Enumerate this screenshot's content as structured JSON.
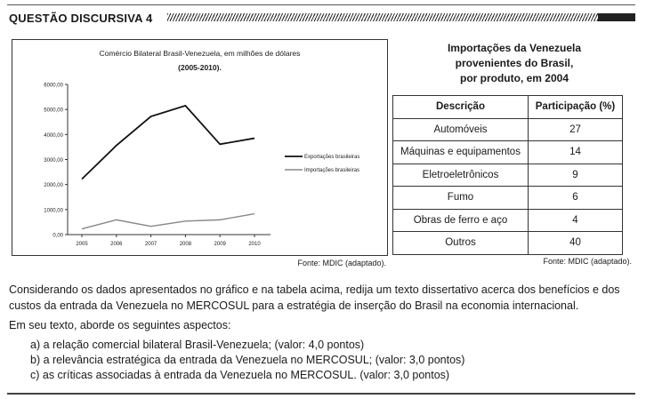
{
  "header": {
    "title": "QUESTÃO DISCURSIVA 4"
  },
  "chart": {
    "title_line1": "Comércio Bilateral Brasil-Venezuela, em milhões de dólares",
    "title_line2": "(2005-2010).",
    "source": "Fonte: MDIC (adaptado)."
  },
  "chart_data": {
    "type": "line",
    "title": "Comércio Bilateral Brasil-Venezuela, em milhões de dólares (2005-2010).",
    "x": [
      "2005",
      "2006",
      "2007",
      "2008",
      "2009",
      "2010"
    ],
    "ylim": [
      0,
      6000
    ],
    "y_ticks": [
      "0,00",
      "1000,00",
      "2000,00",
      "3000,00",
      "4000,00",
      "5000,00",
      "6000,00"
    ],
    "legend_position": "right",
    "grid": false,
    "series": [
      {
        "name": "Exportações brasileiras",
        "values": [
          2220,
          3560,
          4720,
          5150,
          3610,
          3850
        ],
        "color": "#111111"
      },
      {
        "name": "Importações brasileiras",
        "values": [
          230,
          590,
          330,
          540,
          590,
          830
        ],
        "color": "#888888"
      }
    ]
  },
  "table": {
    "title_lines": [
      "Importações da Venezuela",
      "provenientes do Brasil,",
      "por produto, em 2004"
    ],
    "headers": [
      "Descrição",
      "Participação (%)"
    ],
    "rows": [
      [
        "Automóveis",
        "27"
      ],
      [
        "Máquinas e equipamentos",
        "14"
      ],
      [
        "Eletroeletrônicos",
        "9"
      ],
      [
        "Fumo",
        "6"
      ],
      [
        "Obras de ferro e aço",
        "4"
      ],
      [
        "Outros",
        "40"
      ]
    ],
    "source": "Fonte: MDIC (adaptado)."
  },
  "body": {
    "paragraph": "Considerando os dados apresentados no gráfico e na tabela acima, redija um texto dissertativo acerca dos benefícios e dos custos da entrada da Venezuela no MERCOSUL para a estratégia de inserção do Brasil na economia internacional.",
    "instruction": "Em seu texto, aborde os seguintes aspectos:",
    "items": [
      "a) a relação comercial bilateral Brasil-Venezuela; (valor: 4,0 pontos)",
      "b) a relevância estratégica da entrada da Venezuela no MERCOSUL; (valor: 3,0 pontos)",
      "c) as críticas associadas à entrada da Venezuela no MERCOSUL. (valor: 3,0 pontos)"
    ]
  }
}
